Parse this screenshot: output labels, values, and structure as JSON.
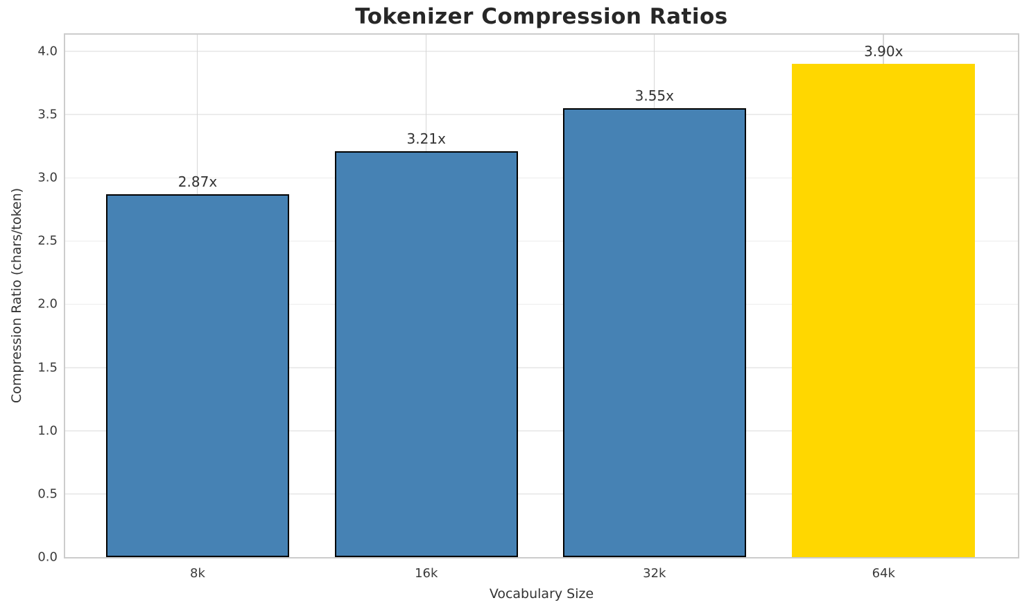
{
  "chart_data": {
    "type": "bar",
    "title": "Tokenizer Compression Ratios",
    "xlabel": "Vocabulary Size",
    "ylabel": "Compression Ratio (chars/token)",
    "categories": [
      "8k",
      "16k",
      "32k",
      "64k"
    ],
    "values": [
      2.87,
      3.21,
      3.55,
      3.9
    ],
    "bar_labels": [
      "2.87x",
      "3.21x",
      "3.55x",
      "3.90x"
    ],
    "bar_colors": [
      "#4682B4",
      "#4682B4",
      "#4682B4",
      "#FFD700"
    ],
    "bar_edge_colors": [
      "#000000",
      "#000000",
      "#000000",
      "#FFD700"
    ],
    "yticks": [
      0.0,
      0.5,
      1.0,
      1.5,
      2.0,
      2.5,
      3.0,
      3.5,
      4.0
    ],
    "ytick_labels": [
      "0.0",
      "0.5",
      "1.0",
      "1.5",
      "2.0",
      "2.5",
      "3.0",
      "3.5",
      "4.0"
    ],
    "ylim": [
      0,
      4.13
    ],
    "grid": true,
    "legend_position": "none"
  },
  "colors": {
    "bar_blue": "#4682B4",
    "bar_gold": "#FFD700",
    "grid_horizontal": "#ececec",
    "grid_vertical": "#d6d6d6",
    "spine": "#cccccc",
    "text": "#333333",
    "title_text": "#272727"
  }
}
